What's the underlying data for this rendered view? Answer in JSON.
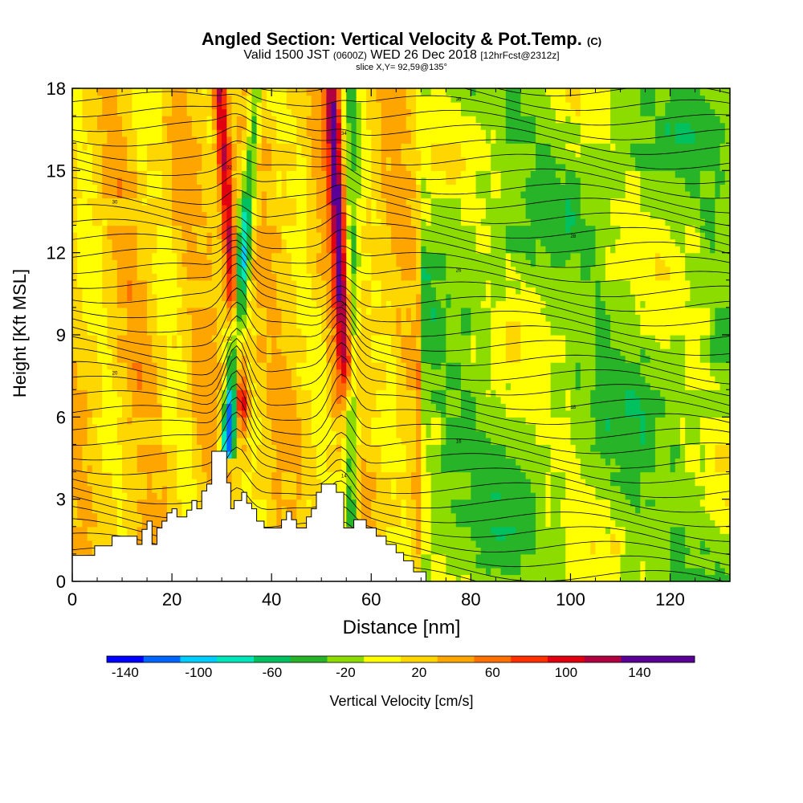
{
  "header": {
    "title": "Angled Section: Vertical Velocity & Pot.Temp.",
    "title_unit": "(C)",
    "valid_prefix": "Valid 1500 JST",
    "valid_utc": "(0600Z)",
    "valid_date": "WED 26 Dec 2018",
    "forecast": "[12hrFcst@2312z]",
    "slice": "slice X,Y= 92,59@135°"
  },
  "chart_data": {
    "type": "heatmap",
    "xlabel": "Distance [nm]",
    "ylabel": "Height [Kft MSL]",
    "xlim": [
      0,
      132
    ],
    "ylim": [
      0,
      18
    ],
    "xticks": [
      0,
      20,
      40,
      60,
      80,
      100,
      120
    ],
    "yticks": [
      0,
      3,
      6,
      9,
      12,
      15,
      18
    ],
    "colorbar": {
      "label": "Vertical Velocity [cm/s]",
      "levels": [
        -160,
        -140,
        -120,
        -100,
        -80,
        -60,
        -40,
        -20,
        0,
        20,
        40,
        60,
        80,
        100,
        120,
        140,
        160
      ],
      "tick_labels": [
        "-140",
        "-100",
        "-60",
        "-20",
        "20",
        "60",
        "100",
        "140"
      ],
      "tick_values": [
        -140,
        -100,
        -60,
        -20,
        20,
        60,
        100,
        140
      ],
      "colors": [
        "#0000ff",
        "#0066ff",
        "#00ccff",
        "#00e6b8",
        "#00c060",
        "#28b428",
        "#8cdc00",
        "#ffff00",
        "#ffd700",
        "#ffa500",
        "#ff7000",
        "#ff3000",
        "#e00010",
        "#b00040",
        "#5a0096",
        "#5a0096"
      ]
    },
    "updrafts": [
      {
        "name": "",
        "x_base_nm": 34,
        "x_top_nm": 29.5,
        "peak_cm_s": 110,
        "y_from_kft": 6,
        "y_to_kft": 18
      },
      {
        "name": "",
        "x_base_nm": 55,
        "x_top_nm": 52,
        "peak_cm_s": 110,
        "y_from_kft": 7.5,
        "y_to_kft": 18
      }
    ],
    "downdrafts": [
      {
        "x_base_nm": 31,
        "x_top_nm": 37,
        "min_cm_s": -150,
        "y_from_kft": 4.5,
        "y_to_kft": 18
      },
      {
        "x_base_nm": 56,
        "x_top_nm": 56,
        "min_cm_s": -80,
        "y_from_kft": 2,
        "y_to_kft": 18
      }
    ],
    "terrain_kft": [
      [
        0,
        0.95
      ],
      [
        4.5,
        0.95
      ],
      [
        4.5,
        1.3
      ],
      [
        8,
        1.3
      ],
      [
        8,
        1.65
      ],
      [
        13,
        1.65
      ],
      [
        13,
        1.35
      ],
      [
        14,
        1.35
      ],
      [
        14,
        1.9
      ],
      [
        15,
        1.9
      ],
      [
        15,
        2.2
      ],
      [
        16,
        2.2
      ],
      [
        16,
        1.35
      ],
      [
        17,
        1.35
      ],
      [
        17,
        1.95
      ],
      [
        18,
        1.95
      ],
      [
        18,
        2.2
      ],
      [
        19,
        2.2
      ],
      [
        19,
        2.5
      ],
      [
        20,
        2.5
      ],
      [
        20,
        2.65
      ],
      [
        21,
        2.65
      ],
      [
        21,
        2.35
      ],
      [
        23,
        2.35
      ],
      [
        23,
        2.6
      ],
      [
        24,
        2.6
      ],
      [
        24,
        2.95
      ],
      [
        25,
        2.95
      ],
      [
        25,
        2.65
      ],
      [
        26,
        2.65
      ],
      [
        26,
        3.3
      ],
      [
        27,
        3.3
      ],
      [
        27,
        3.55
      ],
      [
        28,
        3.55
      ],
      [
        28,
        4.75
      ],
      [
        31,
        4.75
      ],
      [
        31,
        3.6
      ],
      [
        31.8,
        3.6
      ],
      [
        31.8,
        2.65
      ],
      [
        32.5,
        2.65
      ],
      [
        32.5,
        2.95
      ],
      [
        34,
        2.95
      ],
      [
        34,
        3.25
      ],
      [
        35,
        3.25
      ],
      [
        35,
        2.85
      ],
      [
        36,
        2.85
      ],
      [
        36,
        2.65
      ],
      [
        37,
        2.65
      ],
      [
        37,
        2.2
      ],
      [
        38.5,
        2.2
      ],
      [
        38.5,
        1.95
      ],
      [
        42,
        1.95
      ],
      [
        42,
        2.25
      ],
      [
        43,
        2.25
      ],
      [
        43,
        2.55
      ],
      [
        44,
        2.55
      ],
      [
        44,
        2.25
      ],
      [
        45,
        2.25
      ],
      [
        45,
        1.95
      ],
      [
        47,
        1.95
      ],
      [
        47,
        2.35
      ],
      [
        48,
        2.35
      ],
      [
        48,
        2.65
      ],
      [
        49,
        2.65
      ],
      [
        49,
        3.25
      ],
      [
        50,
        3.25
      ],
      [
        50,
        3.55
      ],
      [
        53,
        3.55
      ],
      [
        53,
        3.25
      ],
      [
        54.5,
        3.25
      ],
      [
        54.5,
        1.95
      ],
      [
        56.5,
        1.95
      ],
      [
        56.5,
        2.25
      ],
      [
        59,
        2.25
      ],
      [
        59,
        1.95
      ],
      [
        61,
        1.95
      ],
      [
        61,
        1.65
      ],
      [
        63,
        1.65
      ],
      [
        63,
        1.35
      ],
      [
        65,
        1.35
      ],
      [
        65,
        1.05
      ],
      [
        66.5,
        1.05
      ],
      [
        66.5,
        0.75
      ],
      [
        68.5,
        0.75
      ],
      [
        68.5,
        0.35
      ],
      [
        71,
        0.35
      ],
      [
        71,
        0
      ],
      [
        0,
        0
      ]
    ],
    "contour_label_values": [
      "10",
      "12",
      "14",
      "16",
      "18",
      "20",
      "22",
      "24",
      "26",
      "28",
      "30",
      "32",
      "34",
      "36"
    ]
  }
}
